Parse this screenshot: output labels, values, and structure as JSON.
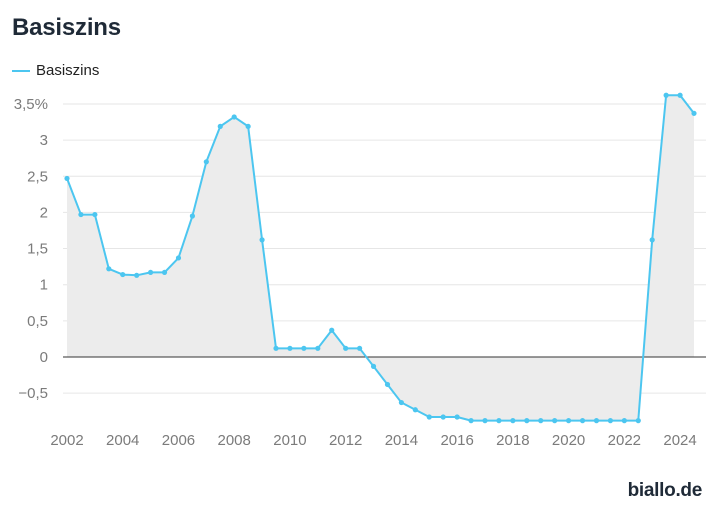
{
  "title": "Basiszins",
  "legend": {
    "label": "Basiszins",
    "color": "#4cc6f0"
  },
  "brand": "biallo.de",
  "chart_data": {
    "type": "area",
    "series": [
      {
        "name": "Basiszins",
        "x": [
          2002.0,
          2002.5,
          2003.0,
          2003.5,
          2004.0,
          2004.5,
          2005.0,
          2005.5,
          2006.0,
          2006.5,
          2007.0,
          2007.5,
          2008.0,
          2008.5,
          2009.0,
          2009.5,
          2010.0,
          2010.5,
          2011.0,
          2011.5,
          2012.0,
          2012.5,
          2013.0,
          2013.5,
          2014.0,
          2014.5,
          2015.0,
          2015.5,
          2016.0,
          2016.5,
          2017.0,
          2017.5,
          2018.0,
          2018.5,
          2019.0,
          2019.5,
          2020.0,
          2020.5,
          2021.0,
          2021.5,
          2022.0,
          2022.5,
          2023.0,
          2023.5,
          2024.0,
          2024.5
        ],
        "values": [
          2.47,
          1.97,
          1.97,
          1.22,
          1.14,
          1.13,
          1.17,
          1.17,
          1.37,
          1.95,
          2.7,
          3.19,
          3.32,
          3.19,
          1.62,
          0.12,
          0.12,
          0.12,
          0.12,
          0.37,
          0.12,
          0.12,
          -0.13,
          -0.38,
          -0.63,
          -0.73,
          -0.83,
          -0.83,
          -0.83,
          -0.88,
          -0.88,
          -0.88,
          -0.88,
          -0.88,
          -0.88,
          -0.88,
          -0.88,
          -0.88,
          -0.88,
          -0.88,
          -0.88,
          -0.88,
          1.62,
          3.62,
          3.62,
          3.37
        ]
      }
    ],
    "xticks": [
      2002,
      2004,
      2006,
      2008,
      2010,
      2012,
      2014,
      2016,
      2018,
      2020,
      2022,
      2024
    ],
    "xtick_labels": [
      "2002",
      "2004",
      "2006",
      "2008",
      "2010",
      "2012",
      "2014",
      "2016",
      "2018",
      "2020",
      "2022",
      "2024"
    ],
    "yticks": [
      -0.5,
      0,
      0.5,
      1,
      1.5,
      2,
      2.5,
      3,
      3.5
    ],
    "ytick_labels": [
      "−0,5",
      "0",
      "0,5",
      "1",
      "1,5",
      "2",
      "2,5",
      "3",
      "3,5%"
    ],
    "xlim": [
      2002,
      2024.5
    ],
    "ylim": [
      -0.88,
      3.5
    ],
    "grid": true,
    "legend_position": "top-left",
    "line_color": "#4cc6f0",
    "fill_color": "#ececec"
  }
}
